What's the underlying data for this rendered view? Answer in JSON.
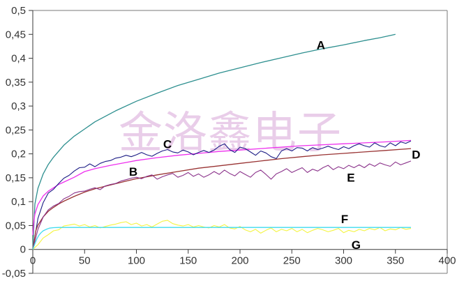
{
  "watermark": {
    "text": "金洛鑫电子",
    "color": "#d8a6d8"
  },
  "frame": {
    "box_color": "#7a7a7a",
    "axis_color": "#3a3a3a",
    "tick_label_color": "#333333",
    "series_label_color": "#000000"
  },
  "chart_data": {
    "type": "line",
    "title": "",
    "xlabel": "",
    "ylabel": "",
    "xlim": [
      0,
      400
    ],
    "ylim": [
      -0.05,
      0.5
    ],
    "grid": false,
    "legend_position": "none-inline-letter-labels",
    "x_ticks": [
      0,
      50,
      100,
      150,
      200,
      250,
      300,
      350,
      400
    ],
    "x_tick_labels": [
      "0",
      "50",
      "100",
      "150",
      "200",
      "250",
      "300",
      "350",
      "400"
    ],
    "y_ticks": [
      0.5,
      0.45,
      0.4,
      0.35,
      0.3,
      0.25,
      0.2,
      0.15,
      0.1,
      0.05,
      0,
      -0.05
    ],
    "y_tick_labels": [
      "0,5",
      "0,45",
      "0,4",
      "0,35",
      "0,3",
      "0,25",
      "0,2",
      "0,15",
      "0,1",
      "0,05",
      "0",
      "-0,05"
    ],
    "series": [
      {
        "name": "A",
        "color": "#2d8f8f",
        "line_style": "smooth",
        "width": 1.3,
        "label_pos": {
          "x": 278,
          "y": 0.427
        },
        "points": [
          [
            0,
            0
          ],
          [
            2,
            0.095
          ],
          [
            5,
            0.128
          ],
          [
            10,
            0.158
          ],
          [
            15,
            0.178
          ],
          [
            20,
            0.193
          ],
          [
            30,
            0.218
          ],
          [
            40,
            0.237
          ],
          [
            50,
            0.252
          ],
          [
            60,
            0.267
          ],
          [
            80,
            0.29
          ],
          [
            100,
            0.31
          ],
          [
            120,
            0.327
          ],
          [
            140,
            0.343
          ],
          [
            160,
            0.356
          ],
          [
            180,
            0.369
          ],
          [
            200,
            0.38
          ],
          [
            220,
            0.391
          ],
          [
            240,
            0.401
          ],
          [
            260,
            0.411
          ],
          [
            280,
            0.42
          ],
          [
            300,
            0.428
          ],
          [
            320,
            0.437
          ],
          [
            335,
            0.443
          ],
          [
            350,
            0.45
          ]
        ]
      },
      {
        "name": "B",
        "color": "#ee2fee",
        "line_style": "smooth",
        "width": 1.3,
        "label_pos": {
          "x": 97,
          "y": 0.162
        },
        "points": [
          [
            0,
            0.03
          ],
          [
            1,
            0.058
          ],
          [
            2,
            0.074
          ],
          [
            5,
            0.094
          ],
          [
            10,
            0.112
          ],
          [
            15,
            0.122
          ],
          [
            20,
            0.129
          ],
          [
            25,
            0.136
          ],
          [
            30,
            0.141
          ],
          [
            40,
            0.151
          ],
          [
            50,
            0.163
          ],
          [
            60,
            0.169
          ],
          [
            75,
            0.176
          ],
          [
            90,
            0.182
          ],
          [
            100,
            0.186
          ],
          [
            120,
            0.192
          ],
          [
            140,
            0.197
          ],
          [
            160,
            0.201
          ],
          [
            180,
            0.205
          ],
          [
            200,
            0.208
          ],
          [
            220,
            0.211
          ],
          [
            240,
            0.214
          ],
          [
            260,
            0.217
          ],
          [
            280,
            0.219
          ],
          [
            300,
            0.221
          ],
          [
            320,
            0.223
          ],
          [
            340,
            0.225
          ],
          [
            365,
            0.228
          ]
        ]
      },
      {
        "name": "C",
        "color": "#1c1c85",
        "line_style": "noisy",
        "width": 1.1,
        "label_pos": {
          "x": 130,
          "y": 0.22
        },
        "x_start": 0,
        "x_step": 5,
        "values": [
          0,
          0.065,
          0.098,
          0.118,
          0.126,
          0.138,
          0.149,
          0.155,
          0.164,
          0.171,
          0.172,
          0.179,
          0.173,
          0.18,
          0.184,
          0.186,
          0.191,
          0.193,
          0.197,
          0.194,
          0.198,
          0.203,
          0.198,
          0.195,
          0.201,
          0.206,
          0.209,
          0.204,
          0.202,
          0.208,
          0.204,
          0.198,
          0.203,
          0.207,
          0.203,
          0.208,
          0.216,
          0.221,
          0.209,
          0.203,
          0.214,
          0.211,
          0.204,
          0.197,
          0.206,
          0.202,
          0.194,
          0.19,
          0.206,
          0.211,
          0.206,
          0.213,
          0.212,
          0.206,
          0.213,
          0.209,
          0.212,
          0.216,
          0.212,
          0.209,
          0.215,
          0.211,
          0.217,
          0.221,
          0.217,
          0.214,
          0.223,
          0.217,
          0.214,
          0.223,
          0.217,
          0.225,
          0.222,
          0.227
        ]
      },
      {
        "name": "D",
        "color": "#993333",
        "line_style": "smooth",
        "width": 1.3,
        "label_pos": {
          "x": 370,
          "y": 0.198
        },
        "points": [
          [
            0,
            0
          ],
          [
            3,
            0.04
          ],
          [
            5,
            0.051
          ],
          [
            10,
            0.068
          ],
          [
            15,
            0.08
          ],
          [
            20,
            0.088
          ],
          [
            25,
            0.095
          ],
          [
            30,
            0.101
          ],
          [
            40,
            0.111
          ],
          [
            50,
            0.12
          ],
          [
            60,
            0.127
          ],
          [
            75,
            0.135
          ],
          [
            90,
            0.143
          ],
          [
            100,
            0.148
          ],
          [
            120,
            0.156
          ],
          [
            140,
            0.163
          ],
          [
            160,
            0.17
          ],
          [
            180,
            0.175
          ],
          [
            200,
            0.18
          ],
          [
            220,
            0.185
          ],
          [
            240,
            0.19
          ],
          [
            260,
            0.194
          ],
          [
            280,
            0.198
          ],
          [
            300,
            0.201
          ],
          [
            320,
            0.204
          ],
          [
            340,
            0.207
          ],
          [
            365,
            0.211
          ]
        ]
      },
      {
        "name": "E",
        "color": "#8b338b",
        "line_style": "noisy",
        "width": 1.1,
        "label_pos": {
          "x": 307,
          "y": 0.15
        },
        "x_start": 0,
        "x_step": 5,
        "values": [
          0,
          0.042,
          0.068,
          0.083,
          0.091,
          0.096,
          0.106,
          0.111,
          0.118,
          0.121,
          0.122,
          0.126,
          0.129,
          0.125,
          0.133,
          0.136,
          0.138,
          0.143,
          0.146,
          0.149,
          0.151,
          0.148,
          0.153,
          0.156,
          0.147,
          0.152,
          0.156,
          0.159,
          0.151,
          0.155,
          0.161,
          0.153,
          0.158,
          0.151,
          0.156,
          0.163,
          0.157,
          0.166,
          0.159,
          0.154,
          0.163,
          0.157,
          0.151,
          0.161,
          0.166,
          0.157,
          0.147,
          0.158,
          0.163,
          0.169,
          0.161,
          0.166,
          0.171,
          0.161,
          0.168,
          0.164,
          0.171,
          0.176,
          0.167,
          0.173,
          0.169,
          0.176,
          0.171,
          0.177,
          0.171,
          0.179,
          0.174,
          0.181,
          0.177,
          0.174,
          0.183,
          0.177,
          0.181,
          0.185
        ]
      },
      {
        "name": "G",
        "color": "#f4f440",
        "line_style": "noisy",
        "width": 1.1,
        "label_pos": {
          "x": 312,
          "y": 0.009
        },
        "x_start": 0,
        "x_step": 5,
        "values": [
          0,
          0.01,
          0.024,
          0.031,
          0.039,
          0.041,
          0.049,
          0.051,
          0.053,
          0.049,
          0.052,
          0.047,
          0.05,
          0.045,
          0.048,
          0.051,
          0.053,
          0.056,
          0.058,
          0.052,
          0.055,
          0.049,
          0.052,
          0.047,
          0.053,
          0.059,
          0.061,
          0.054,
          0.051,
          0.049,
          0.052,
          0.047,
          0.05,
          0.047,
          0.045,
          0.05,
          0.047,
          0.052,
          0.045,
          0.043,
          0.048,
          0.041,
          0.037,
          0.042,
          0.034,
          0.04,
          0.045,
          0.037,
          0.042,
          0.039,
          0.044,
          0.037,
          0.042,
          0.035,
          0.04,
          0.044,
          0.041,
          0.037,
          0.04,
          0.044,
          0.035,
          0.04,
          0.037,
          0.042,
          0.039,
          0.044,
          0.041,
          0.046,
          0.039,
          0.043,
          0.041,
          0.046,
          0.042,
          0.044
        ]
      },
      {
        "name": "F",
        "color": "#3fdbee",
        "line_style": "smooth",
        "width": 1.3,
        "label_pos": {
          "x": 301,
          "y": 0.063
        },
        "points": [
          [
            0,
            0
          ],
          [
            2,
            0.012
          ],
          [
            4,
            0.022
          ],
          [
            6,
            0.03
          ],
          [
            8,
            0.035
          ],
          [
            10,
            0.039
          ],
          [
            13,
            0.042
          ],
          [
            16,
            0.0445
          ],
          [
            20,
            0.0455
          ],
          [
            25,
            0.046
          ],
          [
            30,
            0.046
          ],
          [
            50,
            0.046
          ],
          [
            100,
            0.046
          ],
          [
            150,
            0.046
          ],
          [
            200,
            0.046
          ],
          [
            250,
            0.046
          ],
          [
            300,
            0.046
          ],
          [
            365,
            0.046
          ]
        ]
      }
    ]
  }
}
